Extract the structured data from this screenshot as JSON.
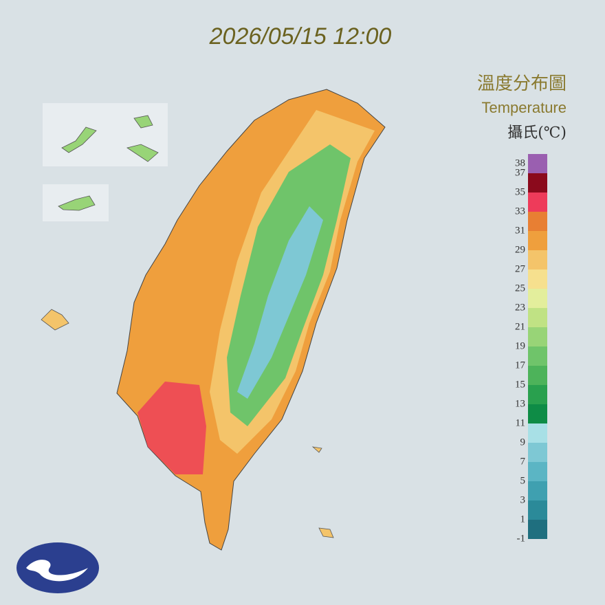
{
  "title": "2026/05/15 12:00",
  "legend": {
    "title": "溫度分布圖",
    "subtitle": "Temperature",
    "unit": "攝氏(℃)",
    "labels": [
      38,
      37,
      35,
      33,
      31,
      29,
      27,
      25,
      23,
      21,
      19,
      17,
      15,
      13,
      11,
      9,
      7,
      5,
      3,
      1,
      -1
    ],
    "colors": [
      "#1f6f7f",
      "#2b8a99",
      "#3fa0b0",
      "#5bb5c4",
      "#7ec8d4",
      "#a8e0e6",
      "#0e8c46",
      "#29a04e",
      "#4db35a",
      "#6fc46a",
      "#98d477",
      "#c0e284",
      "#e3ee9c",
      "#f6e08e",
      "#f4c46a",
      "#ef9f3d",
      "#e87f33",
      "#ee3b5a",
      "#8b0a1c",
      "#9a5fb0"
    ]
  }
}
